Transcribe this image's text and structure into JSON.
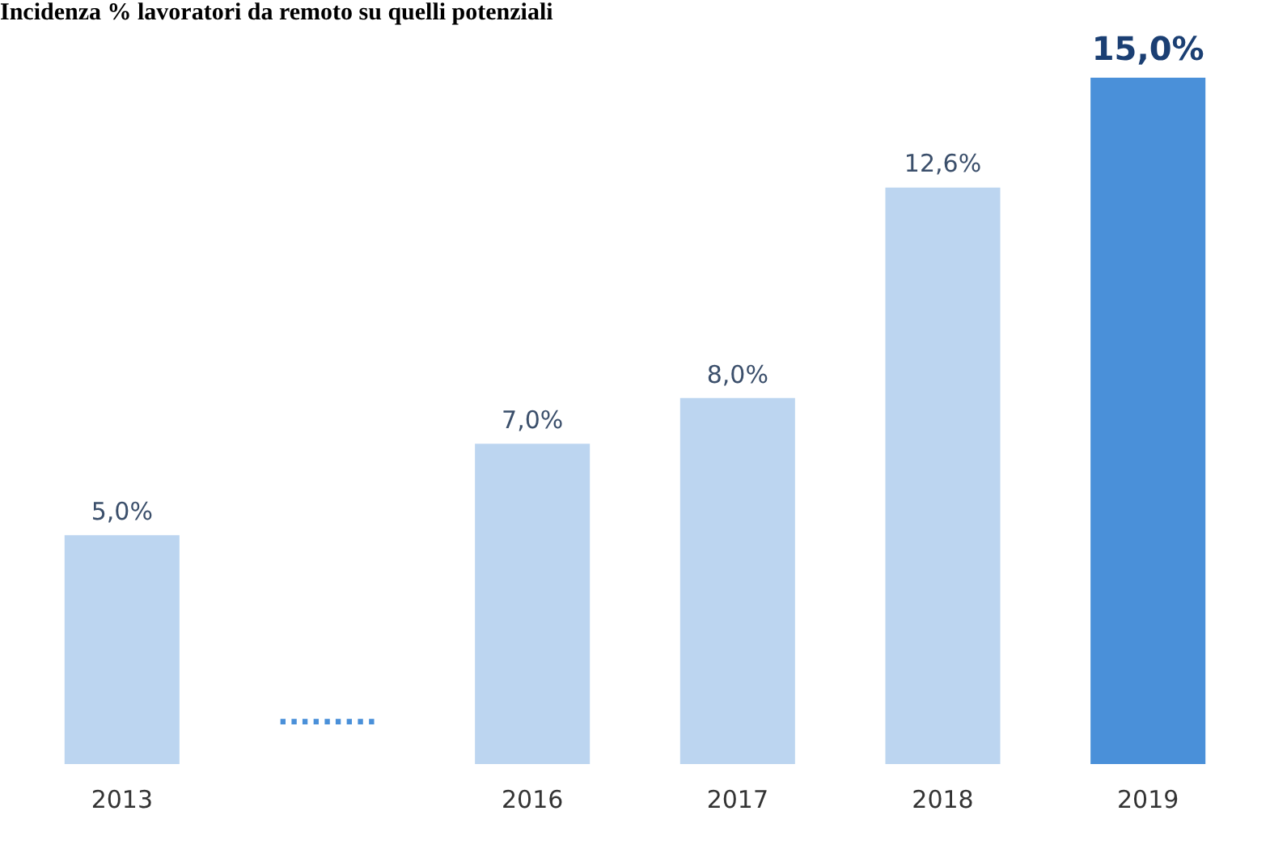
{
  "chart_data": {
    "type": "bar",
    "title": "Incidenza % lavoratori da remoto su quelli potenziali",
    "categories": [
      "2013",
      null,
      "2016",
      "2017",
      "2018",
      "2019"
    ],
    "values": [
      5,
      null,
      7,
      8,
      12.6,
      15
    ],
    "colors": [
      "#bcd5f0",
      "#bcd5f0",
      "#bcd5f0",
      "#bcd5f0",
      "#bcd5f0",
      "#4a90d9"
    ],
    "value_labels": [
      "5,0%",
      null,
      "7,0%",
      "8,0%",
      "12,6%",
      "15,0%"
    ],
    "annotations": [
      "........."
    ],
    "grid": false,
    "legend": false
  }
}
